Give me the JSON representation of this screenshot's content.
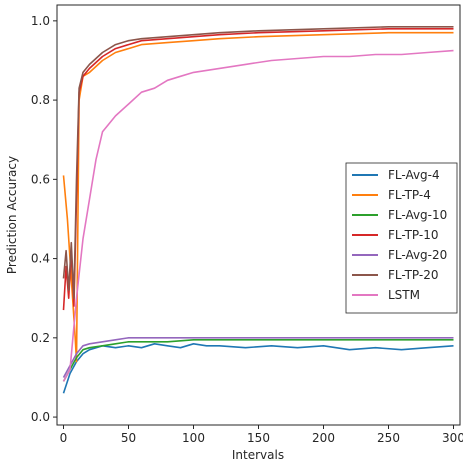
{
  "chart_data": {
    "type": "line",
    "title": "",
    "xlabel": "Intervals",
    "ylabel": "Prediction Accuracy",
    "xlim": [
      -5,
      305
    ],
    "ylim": [
      -0.02,
      1.04
    ],
    "xticks": [
      0,
      50,
      100,
      150,
      200,
      250,
      300
    ],
    "xtick_labels": [
      "0",
      "50",
      "100",
      "150",
      "200",
      "250",
      "300"
    ],
    "yticks": [
      0.0,
      0.2,
      0.4,
      0.6,
      0.8,
      1.0
    ],
    "ytick_labels": [
      "0.0",
      "0.2",
      "0.4",
      "0.6",
      "0.8",
      "1.0"
    ],
    "grid": false,
    "legend_position": "center-right",
    "series": [
      {
        "name": "FL-Avg-4",
        "color": "#1f77b4",
        "x": [
          0,
          5,
          10,
          15,
          20,
          30,
          40,
          50,
          60,
          70,
          80,
          90,
          100,
          110,
          120,
          140,
          160,
          180,
          200,
          220,
          240,
          260,
          280,
          300
        ],
        "y": [
          0.06,
          0.11,
          0.14,
          0.16,
          0.17,
          0.18,
          0.175,
          0.18,
          0.175,
          0.185,
          0.18,
          0.175,
          0.185,
          0.18,
          0.18,
          0.175,
          0.18,
          0.175,
          0.18,
          0.17,
          0.175,
          0.17,
          0.175,
          0.18
        ]
      },
      {
        "name": "FL-TP-4",
        "color": "#ff7f0e",
        "x": [
          0,
          3,
          6,
          9,
          10,
          12,
          15,
          20,
          30,
          40,
          50,
          60,
          80,
          100,
          120,
          150,
          200,
          250,
          300
        ],
        "y": [
          0.61,
          0.5,
          0.35,
          0.2,
          0.14,
          0.8,
          0.86,
          0.87,
          0.9,
          0.92,
          0.93,
          0.94,
          0.945,
          0.95,
          0.955,
          0.96,
          0.965,
          0.97,
          0.97
        ]
      },
      {
        "name": "FL-Avg-10",
        "color": "#2ca02c",
        "x": [
          0,
          5,
          10,
          15,
          20,
          30,
          40,
          50,
          60,
          80,
          100,
          120,
          150,
          200,
          250,
          300
        ],
        "y": [
          0.09,
          0.12,
          0.15,
          0.17,
          0.175,
          0.18,
          0.185,
          0.19,
          0.19,
          0.19,
          0.195,
          0.195,
          0.195,
          0.195,
          0.195,
          0.195
        ]
      },
      {
        "name": "FL-TP-10",
        "color": "#d62728",
        "x": [
          0,
          2,
          4,
          6,
          8,
          10,
          12,
          15,
          20,
          30,
          40,
          50,
          60,
          80,
          100,
          120,
          150,
          200,
          250,
          300
        ],
        "y": [
          0.27,
          0.38,
          0.3,
          0.42,
          0.28,
          0.55,
          0.82,
          0.86,
          0.88,
          0.91,
          0.93,
          0.94,
          0.95,
          0.955,
          0.96,
          0.965,
          0.97,
          0.975,
          0.98,
          0.98
        ]
      },
      {
        "name": "FL-Avg-20",
        "color": "#9467bd",
        "x": [
          0,
          5,
          10,
          15,
          20,
          30,
          40,
          50,
          60,
          80,
          100,
          110,
          150,
          200,
          250,
          300
        ],
        "y": [
          0.1,
          0.13,
          0.16,
          0.18,
          0.185,
          0.19,
          0.195,
          0.2,
          0.2,
          0.2,
          0.2,
          0.2,
          0.2,
          0.2,
          0.2,
          0.2
        ]
      },
      {
        "name": "FL-TP-20",
        "color": "#8c564b",
        "x": [
          0,
          2,
          4,
          6,
          8,
          10,
          12,
          15,
          20,
          30,
          40,
          50,
          60,
          80,
          100,
          120,
          150,
          200,
          250,
          300
        ],
        "y": [
          0.35,
          0.42,
          0.32,
          0.44,
          0.3,
          0.6,
          0.83,
          0.87,
          0.89,
          0.92,
          0.94,
          0.95,
          0.955,
          0.96,
          0.965,
          0.97,
          0.975,
          0.98,
          0.985,
          0.985
        ]
      },
      {
        "name": "LSTM",
        "color": "#e377c2",
        "x": [
          0,
          5,
          10,
          15,
          20,
          25,
          30,
          40,
          50,
          60,
          70,
          80,
          90,
          100,
          120,
          140,
          160,
          180,
          200,
          220,
          240,
          260,
          280,
          300
        ],
        "y": [
          0.09,
          0.12,
          0.3,
          0.45,
          0.55,
          0.65,
          0.72,
          0.76,
          0.79,
          0.82,
          0.83,
          0.85,
          0.86,
          0.87,
          0.88,
          0.89,
          0.9,
          0.905,
          0.91,
          0.91,
          0.915,
          0.915,
          0.92,
          0.925
        ]
      }
    ]
  }
}
